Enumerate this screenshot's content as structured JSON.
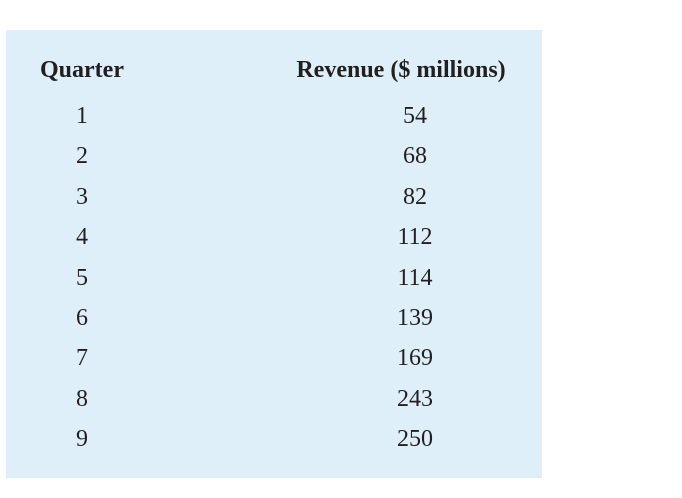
{
  "table": {
    "header": [
      "Quarter",
      "Revenue ($ millions)"
    ],
    "rows": [
      [
        1,
        54
      ],
      [
        2,
        68
      ],
      [
        3,
        82
      ],
      [
        4,
        112
      ],
      [
        5,
        114
      ],
      [
        6,
        139
      ],
      [
        7,
        169
      ],
      [
        8,
        243
      ],
      [
        9,
        250
      ]
    ]
  }
}
